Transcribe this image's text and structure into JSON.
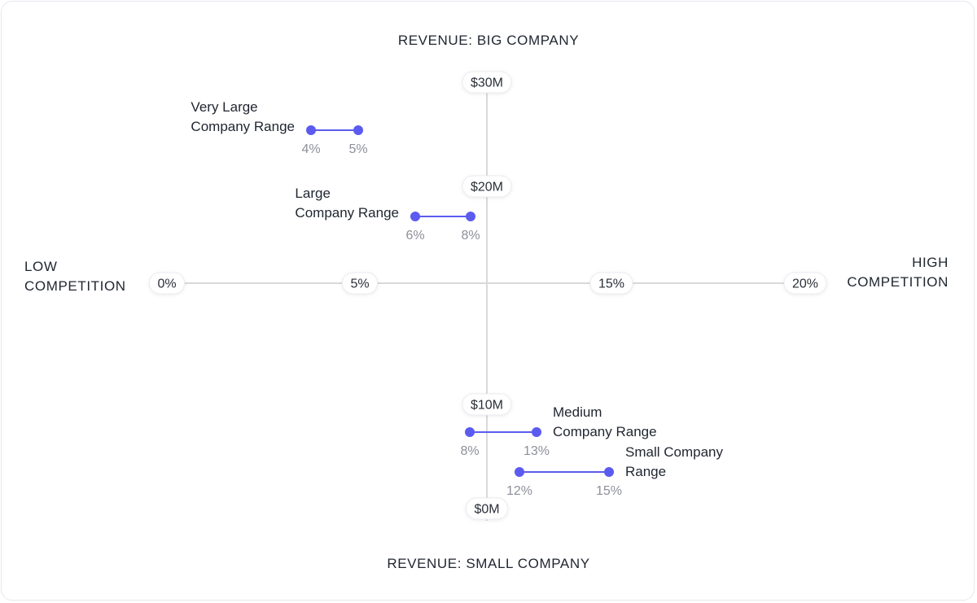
{
  "chart_data": {
    "type": "scatter",
    "title": "",
    "axes": {
      "x": {
        "min": 0,
        "max": 20,
        "unit": "%",
        "left_label": [
          "LOW",
          "COMPETITION"
        ],
        "right_label": [
          "HIGH",
          "COMPETITION"
        ],
        "ticks": [
          {
            "value": 0,
            "label": "0%"
          },
          {
            "value": 5,
            "label": "5%"
          },
          {
            "value": 15,
            "label": "15%"
          },
          {
            "value": 20,
            "label": "20%"
          }
        ]
      },
      "y": {
        "min": 0,
        "max": 30,
        "unit": "$M",
        "top_label": "REVENUE: BIG COMPANY",
        "bottom_label": "REVENUE: SMALL COMPANY",
        "ticks": [
          {
            "value": 30,
            "label": "$30M"
          },
          {
            "value": 20,
            "label": "$20M"
          },
          {
            "value": 10,
            "label": "$10M"
          },
          {
            "value": 0,
            "label": "$0M"
          }
        ]
      }
    },
    "series": [
      {
        "label": [
          "Very Large",
          "Company Range"
        ],
        "x_start": 4,
        "x_end": 5,
        "start_label": "4%",
        "end_label": "5%",
        "y": 26,
        "label_side": "left"
      },
      {
        "label": [
          "Large",
          "Company Range"
        ],
        "x_start": 6,
        "x_end": 8,
        "start_label": "6%",
        "end_label": "8%",
        "y": 18,
        "label_side": "left"
      },
      {
        "label": [
          "Medium",
          "Company Range"
        ],
        "x_start": 8,
        "x_end": 13,
        "start_label": "8%",
        "end_label": "13%",
        "y": 8,
        "label_side": "right"
      },
      {
        "label": [
          "Small Company",
          "Range"
        ],
        "x_start": 12,
        "x_end": 15,
        "start_label": "12%",
        "end_label": "15%",
        "y": 4,
        "label_side": "right"
      }
    ],
    "colors": {
      "range": "#5b5bf0",
      "axis": "#d9d9d9"
    },
    "grid": false
  }
}
